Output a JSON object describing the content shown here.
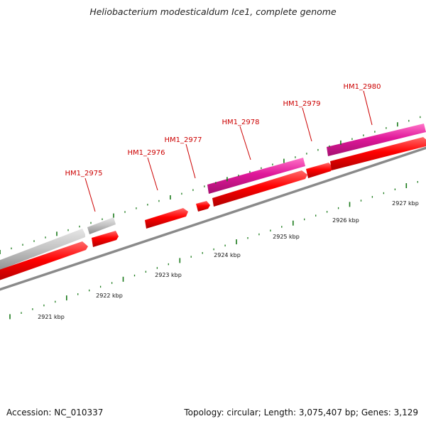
{
  "title": "Heliobacterium modesticaldum Ice1, complete genome",
  "footer": {
    "accession": "Accession: NC_010337",
    "stats": "Topology: circular; Length: 3,075,407 bp; Genes: 3,129"
  },
  "colors": {
    "cds": "#ff0000",
    "highlight": "#e0189a",
    "other_feature": "#c4c4c4",
    "backbone": "#8a8a8a",
    "gene_label": "#cc0000",
    "tick": "#1a7a1a"
  },
  "gene_labels": [
    "HM1_2975",
    "HM1_2976",
    "HM1_2977",
    "HM1_2978",
    "HM1_2979",
    "HM1_2980"
  ],
  "kbp_labels": [
    "2921 kbp",
    "2922 kbp",
    "2923 kbp",
    "2924 kbp",
    "2925 kbp",
    "2926 kbp",
    "2927 kbp"
  ]
}
